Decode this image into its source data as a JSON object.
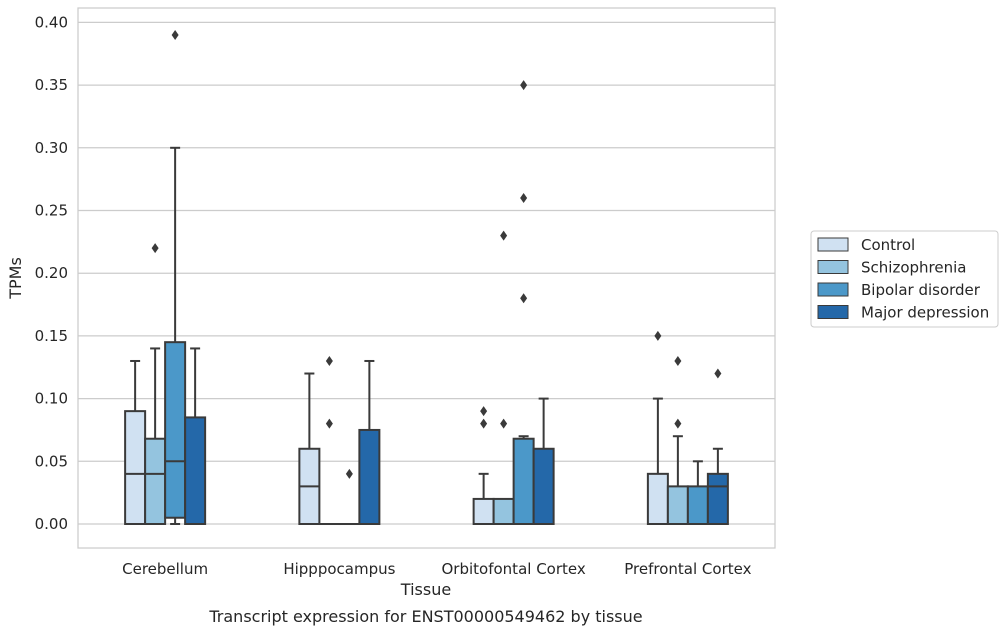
{
  "caption": "Transcript expression for ENST00000549462 by tissue",
  "chart_data": {
    "type": "box",
    "title": "",
    "xlabel": "Tissue",
    "ylabel": "TPMs",
    "ylim": [
      -0.018,
      0.41
    ],
    "yticks": [
      "0.00",
      "0.05",
      "0.10",
      "0.15",
      "0.20",
      "0.25",
      "0.30",
      "0.35",
      "0.40"
    ],
    "grid": true,
    "legend_position": "right",
    "categories": [
      "Cerebellum",
      "Hipppocampus",
      "Orbitofontal Cortex",
      "Prefrontal Cortex"
    ],
    "series": [
      {
        "name": "Control",
        "color": "#d0e1f2",
        "boxes": [
          {
            "q1": 0.0,
            "median": 0.04,
            "q3": 0.09,
            "whisker_low": 0.0,
            "whisker_high": 0.13,
            "outliers": []
          },
          {
            "q1": 0.0,
            "median": 0.03,
            "q3": 0.06,
            "whisker_low": 0.0,
            "whisker_high": 0.12,
            "outliers": []
          },
          {
            "q1": 0.0,
            "median": 0.0,
            "q3": 0.02,
            "whisker_low": 0.0,
            "whisker_high": 0.04,
            "outliers": [
              0.08,
              0.09
            ]
          },
          {
            "q1": 0.0,
            "median": 0.0,
            "q3": 0.04,
            "whisker_low": 0.0,
            "whisker_high": 0.1,
            "outliers": [
              0.15
            ]
          }
        ]
      },
      {
        "name": "Schizophrenia",
        "color": "#94c4df",
        "boxes": [
          {
            "q1": 0.0,
            "median": 0.04,
            "q3": 0.068,
            "whisker_low": 0.0,
            "whisker_high": 0.14,
            "outliers": [
              0.22
            ]
          },
          {
            "q1": 0.0,
            "median": 0.0,
            "q3": 0.0,
            "whisker_low": 0.0,
            "whisker_high": 0.0,
            "outliers": [
              0.08,
              0.13
            ]
          },
          {
            "q1": 0.0,
            "median": 0.0,
            "q3": 0.02,
            "whisker_low": 0.0,
            "whisker_high": 0.02,
            "outliers": [
              0.08,
              0.23
            ]
          },
          {
            "q1": 0.0,
            "median": 0.0,
            "q3": 0.03,
            "whisker_low": 0.0,
            "whisker_high": 0.07,
            "outliers": [
              0.08,
              0.13
            ]
          }
        ]
      },
      {
        "name": "Bipolar disorder",
        "color": "#4b98c9",
        "boxes": [
          {
            "q1": 0.005,
            "median": 0.05,
            "q3": 0.145,
            "whisker_low": 0.0,
            "whisker_high": 0.3,
            "outliers": [
              0.39
            ]
          },
          {
            "q1": 0.0,
            "median": 0.0,
            "q3": 0.0,
            "whisker_low": 0.0,
            "whisker_high": 0.0,
            "outliers": [
              0.04
            ]
          },
          {
            "q1": 0.0,
            "median": 0.0,
            "q3": 0.068,
            "whisker_low": 0.0,
            "whisker_high": 0.07,
            "outliers": [
              0.18,
              0.26,
              0.35
            ]
          },
          {
            "q1": 0.0,
            "median": 0.0,
            "q3": 0.03,
            "whisker_low": 0.0,
            "whisker_high": 0.05,
            "outliers": []
          }
        ]
      },
      {
        "name": "Major depression",
        "color": "#2468a9",
        "boxes": [
          {
            "q1": 0.0,
            "median": 0.0,
            "q3": 0.085,
            "whisker_low": 0.0,
            "whisker_high": 0.14,
            "outliers": []
          },
          {
            "q1": 0.0,
            "median": 0.0,
            "q3": 0.075,
            "whisker_low": 0.0,
            "whisker_high": 0.13,
            "outliers": []
          },
          {
            "q1": 0.0,
            "median": 0.0,
            "q3": 0.06,
            "whisker_low": 0.0,
            "whisker_high": 0.1,
            "outliers": []
          },
          {
            "q1": 0.0,
            "median": 0.03,
            "q3": 0.04,
            "whisker_low": 0.0,
            "whisker_high": 0.06,
            "outliers": [
              0.12
            ]
          }
        ]
      }
    ]
  }
}
